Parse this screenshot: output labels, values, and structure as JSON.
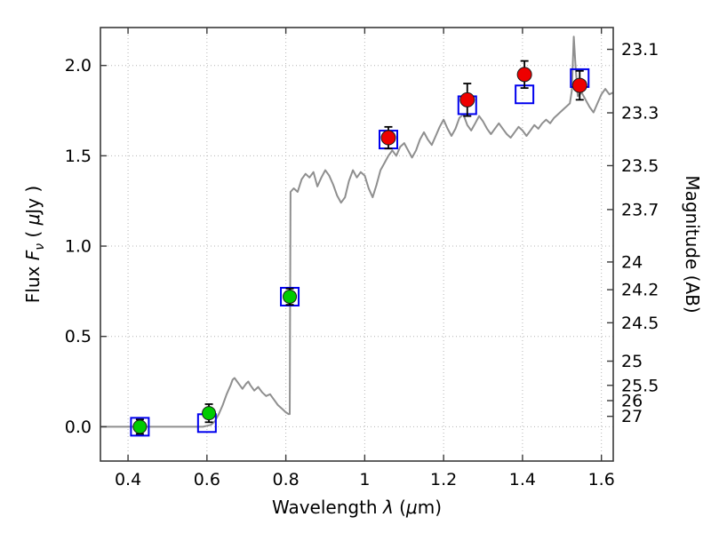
{
  "figure": {
    "background": "#ffffff",
    "axes_background": "#ffffff",
    "frame_color": "#3a3a3a",
    "grid_color": "#b4b4b4",
    "tick_label_color": "#000000"
  },
  "chart_data": {
    "type": "line+scatter",
    "title": "",
    "xlabel": "Wavelength λ (μm)",
    "xlabel_parts": [
      {
        "t": "Wavelength ",
        "s": "n"
      },
      {
        "t": "λ",
        "s": "i"
      },
      {
        "t": " (",
        "s": "n"
      },
      {
        "t": "μ",
        "s": "i"
      },
      {
        "t": "m)",
        "s": "n"
      }
    ],
    "ylabel_left": "Flux Fν ( μJy )",
    "ylabel_left_parts": [
      {
        "t": "Flux ",
        "s": "n"
      },
      {
        "t": "F",
        "s": "i"
      },
      {
        "t": "ν",
        "s": "si"
      },
      {
        "t": " ( ",
        "s": "n"
      },
      {
        "t": "μ",
        "s": "i"
      },
      {
        "t": "Jy )",
        "s": "n"
      }
    ],
    "ylabel_right": "Magnitude (AB)",
    "ylabel_right_parts": [
      {
        "t": "Magnitude (AB)",
        "s": "n"
      }
    ],
    "xlim": [
      0.33,
      1.63
    ],
    "ylim": [
      -0.19,
      2.21
    ],
    "grid": true,
    "legend": "none",
    "x_ticks": [
      {
        "v": 0.4,
        "label": "0.4"
      },
      {
        "v": 0.6,
        "label": "0.6"
      },
      {
        "v": 0.8,
        "label": "0.8"
      },
      {
        "v": 1.0,
        "label": "1"
      },
      {
        "v": 1.2,
        "label": "1.2"
      },
      {
        "v": 1.4,
        "label": "1.4"
      },
      {
        "v": 1.6,
        "label": "1.6"
      }
    ],
    "y_ticks_left": [
      {
        "v": 0.0,
        "label": "0.0"
      },
      {
        "v": 0.5,
        "label": "0.5"
      },
      {
        "v": 1.0,
        "label": "1.0"
      },
      {
        "v": 1.5,
        "label": "1.5"
      },
      {
        "v": 2.0,
        "label": "2.0"
      }
    ],
    "y_ticks_right_mag": [
      "23.1",
      "23.3",
      "23.5",
      "23.7",
      "24",
      "24.2",
      "24.5",
      "25",
      "25.5",
      "26",
      "27"
    ],
    "ab_zeropoint_ujy": 23.9,
    "series": [
      {
        "name": "model-spectrum",
        "type": "line",
        "color": "#8f8f8f",
        "line_width": 2,
        "points": [
          [
            0.33,
            0.0
          ],
          [
            0.37,
            0.0
          ],
          [
            0.41,
            0.0
          ],
          [
            0.45,
            0.0
          ],
          [
            0.49,
            0.0
          ],
          [
            0.53,
            0.0
          ],
          [
            0.56,
            0.0
          ],
          [
            0.59,
            0.0
          ],
          [
            0.61,
            0.01
          ],
          [
            0.62,
            0.03
          ],
          [
            0.63,
            0.07
          ],
          [
            0.64,
            0.12
          ],
          [
            0.65,
            0.18
          ],
          [
            0.66,
            0.23
          ],
          [
            0.665,
            0.26
          ],
          [
            0.67,
            0.27
          ],
          [
            0.68,
            0.24
          ],
          [
            0.69,
            0.21
          ],
          [
            0.7,
            0.24
          ],
          [
            0.705,
            0.25
          ],
          [
            0.71,
            0.23
          ],
          [
            0.72,
            0.2
          ],
          [
            0.73,
            0.22
          ],
          [
            0.74,
            0.19
          ],
          [
            0.75,
            0.17
          ],
          [
            0.76,
            0.18
          ],
          [
            0.77,
            0.15
          ],
          [
            0.78,
            0.12
          ],
          [
            0.79,
            0.1
          ],
          [
            0.8,
            0.08
          ],
          [
            0.807,
            0.07
          ],
          [
            0.81,
            0.07
          ],
          [
            0.812,
            1.3
          ],
          [
            0.82,
            1.32
          ],
          [
            0.83,
            1.3
          ],
          [
            0.84,
            1.37
          ],
          [
            0.85,
            1.4
          ],
          [
            0.86,
            1.38
          ],
          [
            0.87,
            1.41
          ],
          [
            0.875,
            1.37
          ],
          [
            0.88,
            1.33
          ],
          [
            0.89,
            1.38
          ],
          [
            0.9,
            1.42
          ],
          [
            0.91,
            1.39
          ],
          [
            0.92,
            1.34
          ],
          [
            0.93,
            1.28
          ],
          [
            0.94,
            1.24
          ],
          [
            0.95,
            1.27
          ],
          [
            0.96,
            1.36
          ],
          [
            0.97,
            1.42
          ],
          [
            0.98,
            1.38
          ],
          [
            0.99,
            1.41
          ],
          [
            1.0,
            1.39
          ],
          [
            1.01,
            1.32
          ],
          [
            1.02,
            1.27
          ],
          [
            1.03,
            1.34
          ],
          [
            1.04,
            1.42
          ],
          [
            1.05,
            1.46
          ],
          [
            1.06,
            1.5
          ],
          [
            1.07,
            1.53
          ],
          [
            1.08,
            1.5
          ],
          [
            1.09,
            1.55
          ],
          [
            1.1,
            1.57
          ],
          [
            1.11,
            1.53
          ],
          [
            1.12,
            1.49
          ],
          [
            1.13,
            1.53
          ],
          [
            1.14,
            1.59
          ],
          [
            1.15,
            1.63
          ],
          [
            1.16,
            1.59
          ],
          [
            1.17,
            1.56
          ],
          [
            1.18,
            1.61
          ],
          [
            1.19,
            1.66
          ],
          [
            1.2,
            1.7
          ],
          [
            1.21,
            1.65
          ],
          [
            1.22,
            1.61
          ],
          [
            1.23,
            1.65
          ],
          [
            1.24,
            1.71
          ],
          [
            1.25,
            1.73
          ],
          [
            1.26,
            1.67
          ],
          [
            1.27,
            1.64
          ],
          [
            1.28,
            1.68
          ],
          [
            1.29,
            1.72
          ],
          [
            1.3,
            1.69
          ],
          [
            1.31,
            1.65
          ],
          [
            1.32,
            1.62
          ],
          [
            1.33,
            1.65
          ],
          [
            1.34,
            1.68
          ],
          [
            1.35,
            1.65
          ],
          [
            1.36,
            1.62
          ],
          [
            1.37,
            1.6
          ],
          [
            1.38,
            1.63
          ],
          [
            1.39,
            1.66
          ],
          [
            1.4,
            1.64
          ],
          [
            1.41,
            1.61
          ],
          [
            1.42,
            1.64
          ],
          [
            1.43,
            1.67
          ],
          [
            1.44,
            1.65
          ],
          [
            1.45,
            1.68
          ],
          [
            1.46,
            1.7
          ],
          [
            1.47,
            1.68
          ],
          [
            1.48,
            1.71
          ],
          [
            1.49,
            1.73
          ],
          [
            1.5,
            1.75
          ],
          [
            1.51,
            1.77
          ],
          [
            1.52,
            1.79
          ],
          [
            1.525,
            1.86
          ],
          [
            1.53,
            2.16
          ],
          [
            1.535,
            1.98
          ],
          [
            1.54,
            1.83
          ],
          [
            1.55,
            1.85
          ],
          [
            1.56,
            1.81
          ],
          [
            1.57,
            1.77
          ],
          [
            1.58,
            1.74
          ],
          [
            1.59,
            1.79
          ],
          [
            1.6,
            1.84
          ],
          [
            1.61,
            1.87
          ],
          [
            1.62,
            1.84
          ],
          [
            1.63,
            1.85
          ]
        ]
      },
      {
        "name": "model-photometry",
        "type": "scatter",
        "marker": "open-square",
        "color": "#0000ee",
        "size": 20,
        "points": [
          [
            0.43,
            0.0
          ],
          [
            0.6,
            0.02
          ],
          [
            0.81,
            0.72
          ],
          [
            1.06,
            1.59
          ],
          [
            1.26,
            1.78
          ],
          [
            1.405,
            1.84
          ],
          [
            1.545,
            1.93
          ]
        ]
      },
      {
        "name": "observed-photometry-optical",
        "type": "scatter",
        "marker": "circle",
        "color": "#00cc00",
        "edge_color": "#1a1a1a",
        "error_color": "#000000",
        "size": 15,
        "points": [
          {
            "x": 0.43,
            "y": 0.0,
            "yerr": 0.04
          },
          {
            "x": 0.605,
            "y": 0.075,
            "yerr": 0.05
          },
          {
            "x": 0.81,
            "y": 0.72,
            "yerr": 0.045
          }
        ]
      },
      {
        "name": "observed-photometry-nir",
        "type": "scatter",
        "marker": "circle",
        "color": "#ee0000",
        "edge_color": "#1a1a1a",
        "error_color": "#000000",
        "size": 16,
        "points": [
          {
            "x": 1.06,
            "y": 1.6,
            "yerr": 0.06
          },
          {
            "x": 1.26,
            "y": 1.81,
            "yerr": 0.09
          },
          {
            "x": 1.405,
            "y": 1.95,
            "yerr": 0.075
          },
          {
            "x": 1.545,
            "y": 1.89,
            "yerr": 0.08
          }
        ]
      }
    ]
  }
}
